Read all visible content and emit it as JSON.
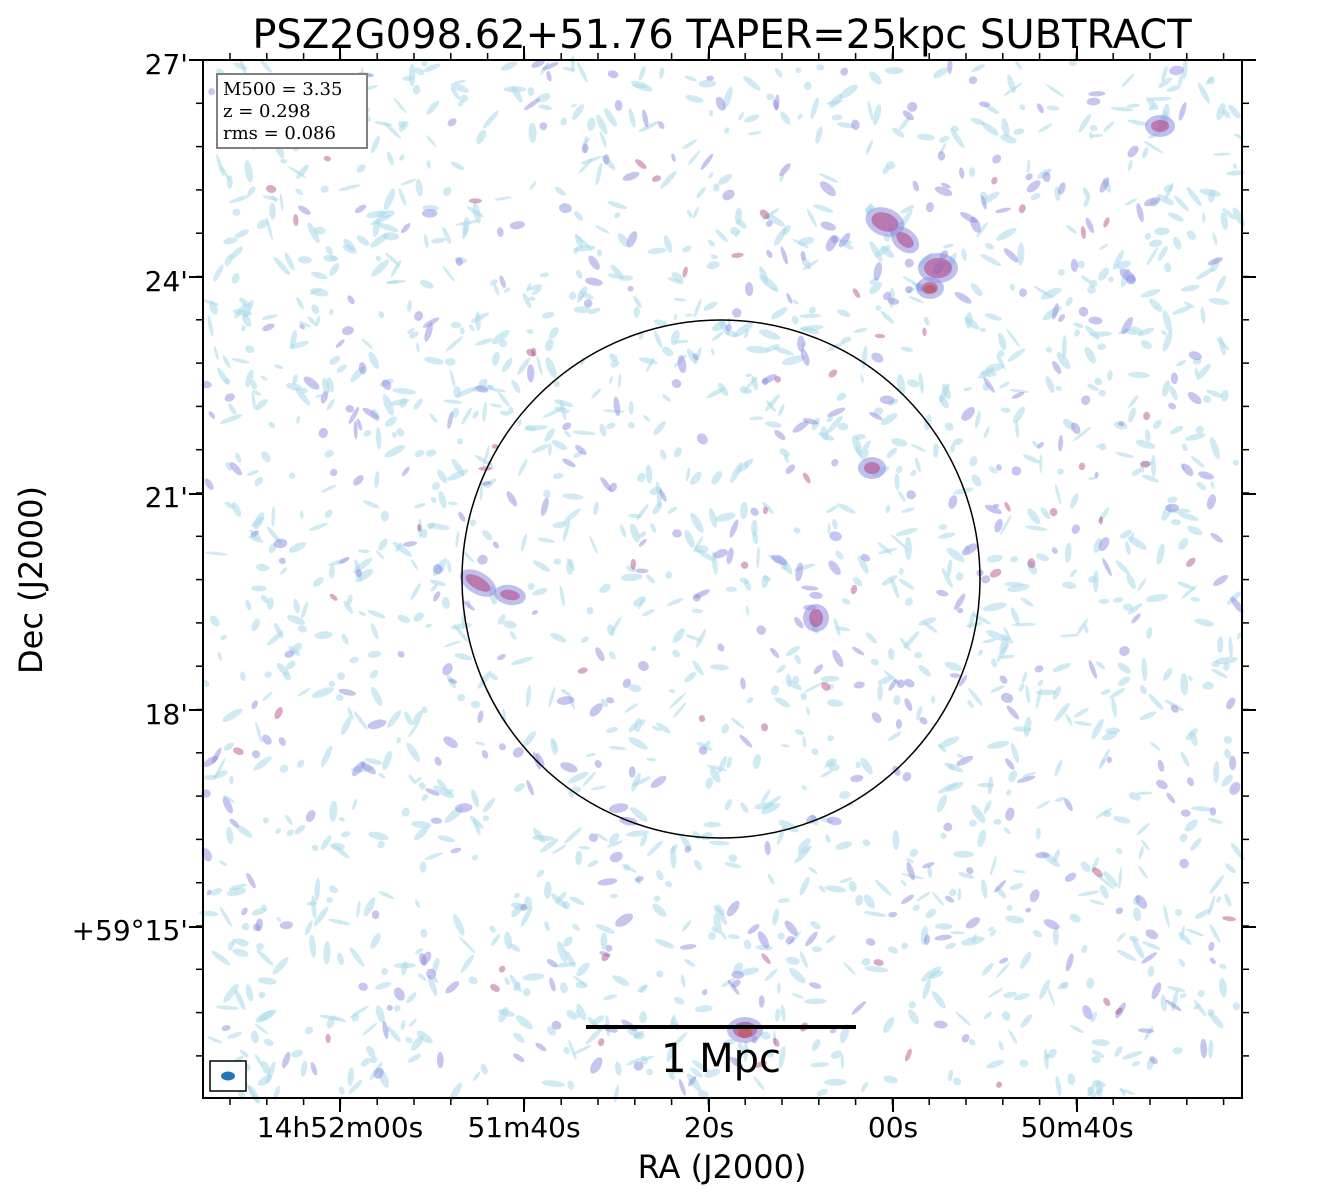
{
  "figure": {
    "title": "PSZ2G098.62+51.76 TAPER=25kpc SUBTRACT",
    "xlabel": "RA (J2000)",
    "ylabel": "Dec (J2000)",
    "x_ticks": [
      "14h52m00s",
      "51m40s",
      "20s",
      "00s",
      "50m40s"
    ],
    "y_ticks": [
      "27'",
      "24'",
      "21'",
      "18'",
      "+59°15'"
    ],
    "info": {
      "mass": "M500 = 3.35",
      "redshift": "z = 0.298",
      "rms": "rms = 0.086"
    },
    "scale_bar_label": "1 Mpc",
    "colors": {
      "faint_emission": "#a8d8ea",
      "mid_emission": "#8c8ce0",
      "bright_emission": "#b04080",
      "peak_emission": "#c0504a",
      "beam": "#1f77b4"
    }
  }
}
